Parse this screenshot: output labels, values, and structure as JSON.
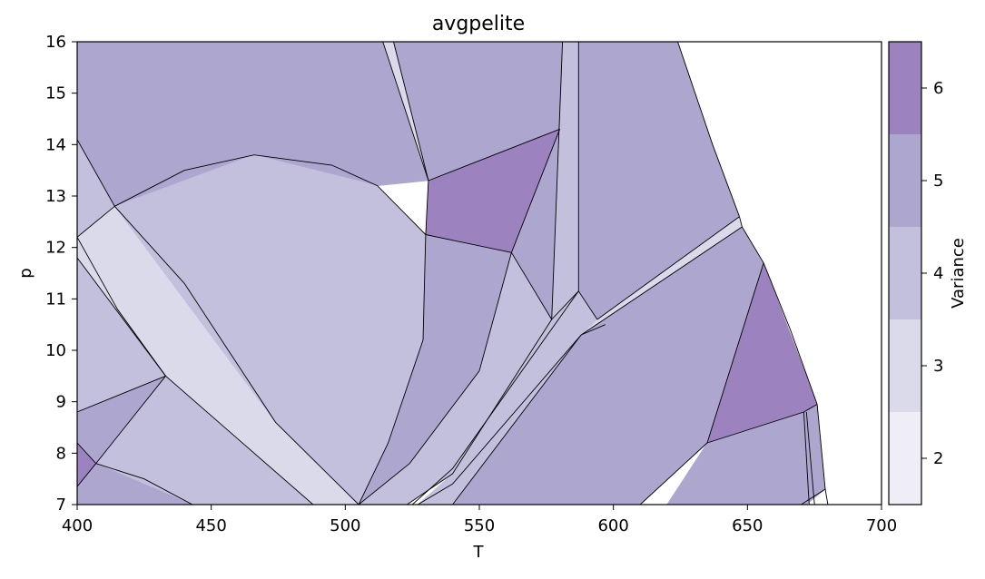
{
  "chart_data": {
    "type": "area",
    "title": "avgpelite",
    "xlabel": "T",
    "ylabel": "p",
    "xlim": [
      400,
      700
    ],
    "ylim": [
      7,
      16
    ],
    "xticks": [
      "400",
      "450",
      "500",
      "550",
      "600",
      "650",
      "700"
    ],
    "yticks": [
      "7",
      "8",
      "9",
      "10",
      "11",
      "12",
      "13",
      "14",
      "15",
      "16"
    ],
    "grid": false,
    "colorbar": {
      "label": "Variance",
      "ticks": [
        "2",
        "3",
        "4",
        "5",
        "6"
      ],
      "levels": [
        {
          "variance": 2,
          "color": "#efedf5"
        },
        {
          "variance": 3,
          "color": "#dadaeb"
        },
        {
          "variance": 4,
          "color": "#c3c0dd"
        },
        {
          "variance": 5,
          "color": "#ada7d0"
        },
        {
          "variance": 6,
          "color": "#9c82bf"
        }
      ]
    },
    "fields": [
      {
        "variance": 5,
        "points": [
          [
            400,
            16
          ],
          [
            514,
            16
          ],
          [
            531,
            13.3
          ],
          [
            512,
            13.2
          ],
          [
            466,
            13.8
          ],
          [
            414,
            12.8
          ],
          [
            400,
            14.1
          ]
        ]
      },
      {
        "variance": 4,
        "points": [
          [
            400,
            14.1
          ],
          [
            414,
            12.8
          ],
          [
            400,
            12.2
          ]
        ]
      },
      {
        "variance": 3,
        "points": [
          [
            514,
            16
          ],
          [
            518,
            16
          ],
          [
            531,
            13.3
          ]
        ]
      },
      {
        "variance": 5,
        "points": [
          [
            518,
            16
          ],
          [
            581,
            16
          ],
          [
            580,
            14.3
          ],
          [
            531,
            13.3
          ]
        ]
      },
      {
        "variance": 6,
        "points": [
          [
            531,
            13.3
          ],
          [
            580,
            14.3
          ],
          [
            562,
            11.9
          ],
          [
            530,
            12.25
          ]
        ]
      },
      {
        "variance": 4,
        "points": [
          [
            581,
            16
          ],
          [
            587,
            16
          ],
          [
            587,
            11.15
          ],
          [
            577,
            10.6
          ]
        ]
      },
      {
        "variance": 5,
        "points": [
          [
            587,
            16
          ],
          [
            624,
            16
          ],
          [
            637,
            14
          ],
          [
            647,
            12.6
          ],
          [
            594,
            10.6
          ],
          [
            587,
            11.15
          ]
        ]
      },
      {
        "variance": 3,
        "points": [
          [
            647,
            12.6
          ],
          [
            648,
            12.4
          ],
          [
            588,
            10.3
          ],
          [
            594,
            10.6
          ]
        ]
      },
      {
        "variance": 5,
        "points": [
          [
            648,
            12.4
          ],
          [
            656,
            11.7
          ],
          [
            635,
            8.2
          ],
          [
            610,
            7
          ],
          [
            540,
            7
          ],
          [
            588,
            10.3
          ]
        ]
      },
      {
        "variance": 6,
        "points": [
          [
            656,
            11.7
          ],
          [
            676,
            8.95
          ],
          [
            671,
            8.8
          ],
          [
            635,
            8.2
          ]
        ]
      },
      {
        "variance": 5,
        "points": [
          [
            676,
            8.95
          ],
          [
            679,
            7.3
          ],
          [
            672,
            7
          ],
          [
            620,
            7
          ],
          [
            635,
            8.2
          ],
          [
            671,
            8.8
          ]
        ]
      },
      {
        "variance": 3,
        "points": [
          [
            400,
            12.2
          ],
          [
            414,
            12.8
          ],
          [
            440,
            11.3
          ],
          [
            474,
            8.6
          ],
          [
            505,
            7
          ],
          [
            488,
            7
          ],
          [
            433,
            9.5
          ],
          [
            400,
            11.8
          ]
        ]
      },
      {
        "variance": 4,
        "points": [
          [
            414,
            12.8
          ],
          [
            466,
            13.8
          ],
          [
            512,
            13.2
          ],
          [
            530,
            12.25
          ],
          [
            529,
            10.2
          ],
          [
            516,
            8.2
          ],
          [
            505,
            7
          ],
          [
            474,
            8.6
          ]
        ]
      },
      {
        "variance": 5,
        "points": [
          [
            530,
            12.25
          ],
          [
            562,
            11.9
          ],
          [
            550,
            9.6
          ],
          [
            524,
            7.8
          ],
          [
            505,
            7
          ],
          [
            516,
            8.2
          ],
          [
            529,
            10.2
          ]
        ]
      },
      {
        "variance": 5,
        "points": [
          [
            562,
            11.9
          ],
          [
            577,
            10.6
          ],
          [
            581,
            16
          ],
          [
            580,
            14.3
          ]
        ]
      },
      {
        "variance": 4,
        "points": [
          [
            562,
            11.9
          ],
          [
            577,
            10.6
          ],
          [
            540,
            7.6
          ],
          [
            523,
            7
          ],
          [
            505,
            7
          ],
          [
            524,
            7.8
          ],
          [
            550,
            9.6
          ]
        ]
      },
      {
        "variance": 4,
        "points": [
          [
            577,
            10.6
          ],
          [
            587,
            11.15
          ],
          [
            594,
            10.6
          ],
          [
            588,
            10.3
          ],
          [
            540,
            7
          ],
          [
            527,
            7
          ],
          [
            540,
            7.6
          ]
        ]
      },
      {
        "variance": 4,
        "points": [
          [
            400,
            11.8
          ],
          [
            433,
            9.5
          ],
          [
            400,
            8.8
          ]
        ]
      },
      {
        "variance": 5,
        "points": [
          [
            400,
            8.8
          ],
          [
            433,
            9.5
          ],
          [
            407,
            7.8
          ],
          [
            400,
            8.2
          ]
        ]
      },
      {
        "variance": 4,
        "points": [
          [
            433,
            9.5
          ],
          [
            488,
            7
          ],
          [
            443,
            7
          ],
          [
            407,
            7.8
          ]
        ]
      },
      {
        "variance": 6,
        "points": [
          [
            400,
            8.2
          ],
          [
            407,
            7.8
          ],
          [
            400,
            7.35
          ]
        ]
      },
      {
        "variance": 5,
        "points": [
          [
            400,
            7.35
          ],
          [
            407,
            7.8
          ],
          [
            443,
            7
          ],
          [
            400,
            7
          ]
        ]
      }
    ],
    "boundaries": [
      [
        [
          400,
          14.1
        ],
        [
          414,
          12.8
        ],
        [
          400,
          12.2
        ]
      ],
      [
        [
          414,
          12.8
        ],
        [
          440,
          13.5
        ],
        [
          466,
          13.8
        ],
        [
          495,
          13.6
        ],
        [
          512,
          13.2
        ],
        [
          530,
          12.25
        ]
      ],
      [
        [
          414,
          12.8
        ],
        [
          440,
          11.3
        ],
        [
          474,
          8.6
        ],
        [
          505,
          7
        ]
      ],
      [
        [
          400,
          12.2
        ],
        [
          415,
          10.8
        ],
        [
          433,
          9.5
        ],
        [
          488,
          7
        ]
      ],
      [
        [
          400,
          11.8
        ],
        [
          433,
          9.5
        ]
      ],
      [
        [
          400,
          8.8
        ],
        [
          433,
          9.5
        ]
      ],
      [
        [
          433,
          9.5
        ],
        [
          407,
          7.8
        ],
        [
          400,
          8.2
        ]
      ],
      [
        [
          407,
          7.8
        ],
        [
          400,
          7.35
        ]
      ],
      [
        [
          407,
          7.8
        ],
        [
          425,
          7.5
        ],
        [
          443,
          7
        ]
      ],
      [
        [
          514,
          16
        ],
        [
          531,
          13.3
        ]
      ],
      [
        [
          518,
          16
        ],
        [
          531,
          13.3
        ]
      ],
      [
        [
          531,
          13.3
        ],
        [
          580,
          14.3
        ]
      ],
      [
        [
          531,
          13.3
        ],
        [
          530,
          12.25
        ],
        [
          529,
          10.2
        ],
        [
          516,
          8.2
        ],
        [
          505,
          7
        ]
      ],
      [
        [
          530,
          12.25
        ],
        [
          562,
          11.9
        ]
      ],
      [
        [
          580,
          14.3
        ],
        [
          562,
          11.9
        ]
      ],
      [
        [
          562,
          11.9
        ],
        [
          550,
          9.6
        ],
        [
          524,
          7.8
        ],
        [
          505,
          7
        ]
      ],
      [
        [
          562,
          11.9
        ],
        [
          577,
          10.6
        ]
      ],
      [
        [
          581,
          16
        ],
        [
          577,
          10.6
        ]
      ],
      [
        [
          587,
          16
        ],
        [
          587,
          11.15
        ]
      ],
      [
        [
          577,
          10.6
        ],
        [
          587,
          11.15
        ],
        [
          594,
          10.6
        ]
      ],
      [
        [
          624,
          16
        ],
        [
          637,
          14
        ],
        [
          647,
          12.6
        ]
      ],
      [
        [
          647,
          12.6
        ],
        [
          594,
          10.6
        ]
      ],
      [
        [
          648,
          12.4
        ],
        [
          588,
          10.3
        ]
      ],
      [
        [
          647,
          12.6
        ],
        [
          648,
          12.4
        ],
        [
          656,
          11.7
        ]
      ],
      [
        [
          656,
          11.7
        ],
        [
          666,
          10.4
        ],
        [
          676,
          8.95
        ],
        [
          679,
          7.3
        ],
        [
          680,
          7
        ]
      ],
      [
        [
          656,
          11.7
        ],
        [
          635,
          8.2
        ]
      ],
      [
        [
          635,
          8.2
        ],
        [
          671,
          8.8
        ],
        [
          676,
          8.95
        ]
      ],
      [
        [
          635,
          8.2
        ],
        [
          610,
          7
        ]
      ],
      [
        [
          671,
          8.8
        ],
        [
          673,
          7
        ]
      ],
      [
        [
          672,
          8.8
        ],
        [
          675,
          7
        ]
      ],
      [
        [
          670,
          7
        ],
        [
          679,
          7.3
        ]
      ],
      [
        [
          577,
          10.6
        ],
        [
          540,
          7.6
        ],
        [
          523,
          7
        ]
      ],
      [
        [
          587,
          11.15
        ],
        [
          540,
          7.7
        ],
        [
          525,
          7
        ]
      ],
      [
        [
          588,
          10.3
        ],
        [
          540,
          7.4
        ],
        [
          527,
          7
        ]
      ],
      [
        [
          588,
          10.3
        ],
        [
          540,
          7
        ]
      ],
      [
        [
          588,
          10.3
        ],
        [
          597,
          10.5
        ]
      ]
    ]
  }
}
